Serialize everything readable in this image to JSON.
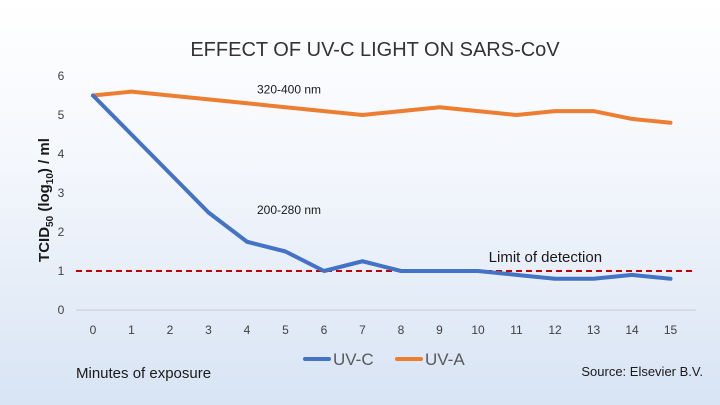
{
  "chart_data": {
    "type": "line",
    "title": "EFFECT OF UV-C LIGHT ON SARS-CoV",
    "xlabel": "Minutes of exposure",
    "ylabel": {
      "main": "TCID",
      "sub1": "50",
      "mid": " (log",
      "sub2": "10",
      "end": ") / ml"
    },
    "x": [
      0,
      1,
      2,
      3,
      4,
      5,
      6,
      7,
      8,
      9,
      10,
      11,
      12,
      13,
      14,
      15
    ],
    "ylim": [
      0,
      6
    ],
    "yticks": [
      0,
      1,
      2,
      3,
      4,
      5,
      6
    ],
    "grid": false,
    "legend_position": "bottom",
    "series": [
      {
        "name": "UV-C",
        "color": "#4472C4",
        "values": [
          5.5,
          4.5,
          3.5,
          2.5,
          1.75,
          1.5,
          1.0,
          1.25,
          1.0,
          1.0,
          1.0,
          0.9,
          0.8,
          0.8,
          0.9,
          0.8
        ]
      },
      {
        "name": "UV-A",
        "color": "#ED7D31",
        "values": [
          5.5,
          5.6,
          5.5,
          5.4,
          5.3,
          5.2,
          5.1,
          5.0,
          5.1,
          5.2,
          5.1,
          5.0,
          5.1,
          5.1,
          4.9,
          4.8
        ]
      }
    ],
    "reference_line": {
      "label": "Limit of detection",
      "y": 1,
      "color": "#C00000"
    },
    "annotations": [
      {
        "text": "320-400 nm",
        "x": 4,
        "y": 5.3
      },
      {
        "text": "200-280 nm",
        "x": 4,
        "y": 2.2
      }
    ],
    "source": "Source: Elsevier B.V."
  }
}
